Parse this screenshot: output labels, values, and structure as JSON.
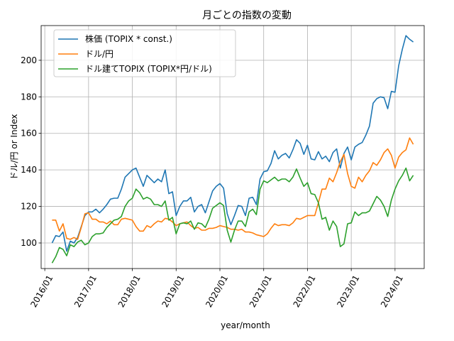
{
  "chart_data": {
    "type": "line",
    "title": "月ごとの指数の変動",
    "xlabel": "year/month",
    "ylabel": "ドル/円 or Index",
    "x_ticks": [
      "2016/01",
      "2017/01",
      "2018/01",
      "2019/01",
      "2020/01",
      "2021/01",
      "2022/01",
      "2023/01",
      "2024/01"
    ],
    "y_ticks": [
      100,
      120,
      140,
      160,
      180,
      200
    ],
    "xlim": [
      "2015/12",
      "2024/09"
    ],
    "ylim": [
      86,
      219
    ],
    "grid": true,
    "legend_position": "top-left",
    "x": [
      "2016/03",
      "2016/04",
      "2016/05",
      "2016/06",
      "2016/07",
      "2016/08",
      "2016/09",
      "2016/10",
      "2016/11",
      "2016/12",
      "2017/01",
      "2017/02",
      "2017/03",
      "2017/04",
      "2017/05",
      "2017/06",
      "2017/07",
      "2017/08",
      "2017/09",
      "2017/10",
      "2017/11",
      "2017/12",
      "2018/01",
      "2018/02",
      "2018/03",
      "2018/04",
      "2018/05",
      "2018/06",
      "2018/07",
      "2018/08",
      "2018/09",
      "2018/10",
      "2018/11",
      "2018/12",
      "2019/01",
      "2019/02",
      "2019/03",
      "2019/04",
      "2019/05",
      "2019/06",
      "2019/07",
      "2019/08",
      "2019/09",
      "2019/10",
      "2019/11",
      "2019/12",
      "2020/01",
      "2020/02",
      "2020/03",
      "2020/04",
      "2020/05",
      "2020/06",
      "2020/07",
      "2020/08",
      "2020/09",
      "2020/10",
      "2020/11",
      "2020/12",
      "2021/01",
      "2021/02",
      "2021/03",
      "2021/04",
      "2021/05",
      "2021/06",
      "2021/07",
      "2021/08",
      "2021/09",
      "2021/10",
      "2021/11",
      "2021/12",
      "2022/01",
      "2022/02",
      "2022/03",
      "2022/04",
      "2022/05",
      "2022/06",
      "2022/07",
      "2022/08",
      "2022/09",
      "2022/10",
      "2022/11",
      "2022/12",
      "2023/01",
      "2023/02",
      "2023/03",
      "2023/04",
      "2023/05",
      "2023/06",
      "2023/07",
      "2023/08",
      "2023/09",
      "2023/10",
      "2023/11",
      "2023/12",
      "2024/01",
      "2024/02",
      "2024/03",
      "2024/04",
      "2024/05",
      "2024/06"
    ],
    "series": [
      {
        "name": "株価 (TOPIX * const.)",
        "color": "#1f77b4",
        "values": [
          100,
          104,
          103.5,
          106,
          95.5,
          101,
          100,
          103,
          109,
          115,
          117,
          117,
          118.5,
          116.5,
          118.5,
          121,
          124,
          124.5,
          124.5,
          129.5,
          136,
          138,
          140,
          141,
          136,
          131,
          137,
          135,
          133,
          135,
          133.5,
          140,
          127,
          128,
          115,
          120,
          123,
          123,
          125,
          117,
          120,
          121,
          116.5,
          122.5,
          128.5,
          131,
          132.5,
          130,
          116,
          110,
          115,
          120.5,
          120,
          115,
          124.5,
          125,
          121,
          135,
          139,
          139.5,
          143.5,
          150.5,
          146,
          148,
          149,
          146.5,
          151,
          156.5,
          154.5,
          148.5,
          153.5,
          146,
          145.5,
          150,
          146,
          147.5,
          144.5,
          149.5,
          151.5,
          141,
          149,
          152.5,
          145.5,
          152.5,
          154,
          155,
          159,
          164,
          176.5,
          179,
          180,
          179.5,
          173.5,
          183,
          182.5,
          197,
          206,
          213.5,
          211.5,
          210
        ]
      },
      {
        "name": "ドル/円",
        "color": "#ff7f0e",
        "values": [
          112.5,
          112.5,
          106.5,
          110.5,
          102.5,
          102,
          103,
          102,
          108.5,
          116,
          116.5,
          113,
          113,
          111.5,
          111.5,
          110.5,
          112,
          110,
          110,
          113,
          113.5,
          113,
          112.5,
          109,
          106.5,
          106.5,
          109.5,
          108.5,
          110.5,
          112,
          111.5,
          113.5,
          113,
          111.5,
          109.5,
          110.5,
          111,
          111.5,
          109.5,
          108,
          108.5,
          107,
          107,
          108,
          108,
          108.5,
          109.5,
          109,
          108.5,
          107.5,
          107.5,
          107,
          107.5,
          106,
          106,
          105.5,
          104.5,
          104,
          103.5,
          105,
          108,
          110.5,
          109.5,
          110,
          110,
          109.5,
          111,
          113.5,
          113,
          114,
          115,
          115,
          115,
          122,
          129.5,
          129.5,
          135.5,
          133.5,
          138.5,
          144.5,
          148.5,
          138,
          131,
          130,
          136,
          133.5,
          137,
          139.5,
          144,
          142.5,
          145.5,
          149.5,
          151.5,
          148,
          141,
          147,
          149.5,
          151,
          157.5,
          154
        ]
      },
      {
        "name": "ドル建てTOPIX (TOPIX*円/ドル)",
        "color": "#2ca02c",
        "values": [
          89,
          92.5,
          97.5,
          96.5,
          93,
          99,
          98,
          100.5,
          101.5,
          99,
          100,
          103.5,
          105,
          105,
          105.5,
          108.5,
          110.5,
          112.5,
          113,
          114.5,
          120,
          123,
          124.5,
          129.5,
          127.5,
          124,
          125,
          124,
          121,
          121,
          120,
          123,
          112.5,
          114,
          105,
          110.5,
          111,
          110.5,
          112,
          107.5,
          111,
          110.5,
          108.5,
          113,
          119,
          120.5,
          122,
          120.5,
          107,
          100.5,
          107,
          112,
          112,
          109,
          117,
          118.5,
          115.5,
          129.5,
          134,
          133,
          134.5,
          136,
          134,
          135,
          135,
          133.5,
          136,
          140.5,
          135.5,
          131,
          133,
          127,
          126.5,
          122,
          113,
          114,
          107,
          112,
          109,
          98,
          99.5,
          110.5,
          111,
          117,
          115,
          116.5,
          116.5,
          117.5,
          121.5,
          125.5,
          123.5,
          120,
          114.5,
          123.5,
          129.5,
          134,
          137,
          141,
          134,
          137
        ]
      }
    ]
  }
}
